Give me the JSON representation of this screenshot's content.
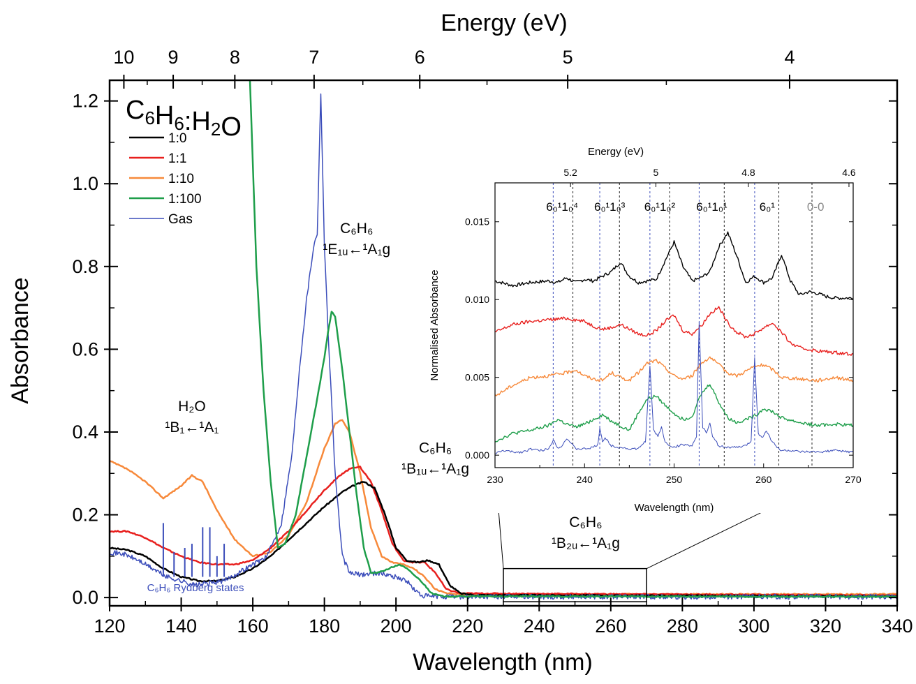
{
  "chart_data": [
    {
      "type": "line",
      "xlabel": "Wavelength (nm)",
      "ylabel": "Absorbance",
      "x2label": "Energy (eV)",
      "xlim": [
        120,
        340
      ],
      "ylim": [
        -0.02,
        1.25
      ],
      "xticks": [
        "120",
        "140",
        "160",
        "180",
        "200",
        "220",
        "240",
        "260",
        "280",
        "300",
        "320",
        "340"
      ],
      "yticks": [
        "0.0",
        "0.2",
        "0.4",
        "0.6",
        "0.8",
        "1.0",
        "1.2"
      ],
      "energy_ticks": [
        {
          "label": "10",
          "ev": 10
        },
        {
          "label": "9",
          "ev": 9
        },
        {
          "label": "8",
          "ev": 8
        },
        {
          "label": "7",
          "ev": 7
        },
        {
          "label": "6",
          "ev": 6
        },
        {
          "label": "5",
          "ev": 5
        },
        {
          "label": "4",
          "ev": 4
        }
      ],
      "legend_title": "C6H6:H2O",
      "legend_position": "top-left",
      "series": [
        {
          "name": "1:0",
          "color": "#000000",
          "x": [
            120,
            125,
            130,
            135,
            140,
            145,
            150,
            155,
            160,
            165,
            170,
            175,
            180,
            185,
            188,
            191,
            194,
            197,
            200,
            203,
            206,
            209,
            212,
            215,
            218,
            222,
            340
          ],
          "y": [
            0.12,
            0.115,
            0.1,
            0.07,
            0.05,
            0.04,
            0.04,
            0.05,
            0.07,
            0.1,
            0.14,
            0.18,
            0.22,
            0.255,
            0.27,
            0.28,
            0.265,
            0.2,
            0.12,
            0.09,
            0.085,
            0.09,
            0.08,
            0.03,
            0.01,
            0.006,
            0.003
          ]
        },
        {
          "name": "1:1",
          "color": "#e8201e",
          "x": [
            120,
            125,
            130,
            135,
            140,
            145,
            150,
            155,
            160,
            165,
            170,
            175,
            180,
            185,
            188,
            190,
            193,
            196,
            199,
            202,
            205,
            208,
            211,
            214,
            218,
            340
          ],
          "y": [
            0.16,
            0.16,
            0.145,
            0.12,
            0.1,
            0.085,
            0.08,
            0.08,
            0.09,
            0.12,
            0.16,
            0.21,
            0.26,
            0.3,
            0.315,
            0.315,
            0.28,
            0.21,
            0.13,
            0.09,
            0.085,
            0.085,
            0.06,
            0.02,
            0.01,
            0.005
          ]
        },
        {
          "name": "1:10",
          "color": "#f7893a",
          "x": [
            120,
            125,
            130,
            135,
            140,
            143,
            146,
            150,
            155,
            160,
            165,
            170,
            175,
            180,
            183,
            185,
            187,
            190,
            193,
            196,
            199,
            202,
            205,
            208,
            211,
            214,
            218,
            340
          ],
          "y": [
            0.33,
            0.31,
            0.28,
            0.24,
            0.27,
            0.295,
            0.28,
            0.21,
            0.14,
            0.1,
            0.11,
            0.15,
            0.23,
            0.36,
            0.42,
            0.43,
            0.4,
            0.3,
            0.17,
            0.1,
            0.085,
            0.08,
            0.07,
            0.05,
            0.02,
            0.01,
            0.008,
            0.008
          ]
        },
        {
          "name": "1:100",
          "color": "#1e9e4a",
          "x": [
            159,
            161,
            163,
            165,
            167,
            169,
            172,
            175,
            178,
            180,
            181,
            182,
            183,
            185,
            187,
            189,
            191,
            193,
            195,
            198,
            201,
            203,
            205,
            207,
            210,
            213,
            220,
            340
          ],
          "y": [
            1.3,
            0.8,
            0.5,
            0.28,
            0.12,
            0.13,
            0.2,
            0.34,
            0.48,
            0.58,
            0.64,
            0.69,
            0.68,
            0.55,
            0.4,
            0.25,
            0.12,
            0.06,
            0.06,
            0.07,
            0.08,
            0.07,
            0.055,
            0.04,
            0.01,
            0.003,
            0.003,
            0.002
          ]
        },
        {
          "name": "Gas",
          "color": "#3b4dba",
          "x": [
            120,
            124,
            128,
            132,
            136,
            140,
            144,
            148,
            152,
            156,
            160,
            164,
            168,
            171,
            173,
            175,
            177,
            178,
            179,
            180,
            181,
            183,
            185,
            187,
            190,
            195,
            200,
            203,
            205,
            207,
            210,
            340
          ],
          "y": [
            0.11,
            0.105,
            0.09,
            0.07,
            0.05,
            0.04,
            0.03,
            0.035,
            0.04,
            0.06,
            0.08,
            0.1,
            0.18,
            0.35,
            0.55,
            0.72,
            0.85,
            0.88,
            1.22,
            0.85,
            0.65,
            0.3,
            0.1,
            0.06,
            0.055,
            0.06,
            0.05,
            0.04,
            0.02,
            0.005,
            0.002,
            0.002
          ]
        }
      ],
      "gas_spikes": [
        {
          "x": 135,
          "y": 0.18
        },
        {
          "x": 138,
          "y": 0.11
        },
        {
          "x": 141,
          "y": 0.12
        },
        {
          "x": 143,
          "y": 0.13
        },
        {
          "x": 146,
          "y": 0.17
        },
        {
          "x": 148,
          "y": 0.17
        },
        {
          "x": 150,
          "y": 0.1
        },
        {
          "x": 152,
          "y": 0.13
        }
      ],
      "annotations": [
        {
          "line1": "H₂O",
          "line2": "¹B₁←¹A₁",
          "x": 143,
          "y": 0.43
        },
        {
          "line1": "C₆H₆",
          "line2": "¹E₁ᵤ←¹A₁g",
          "x": 189,
          "y": 0.86
        },
        {
          "line1": "C₆H₆",
          "line2": "¹B₁ᵤ←¹A₁g",
          "x": 211,
          "y": 0.33
        },
        {
          "line1": "C₆H₆",
          "line2": "¹B₂ᵤ←¹A₁g",
          "x": 253,
          "y": 0.15
        },
        {
          "line1": "C₆H₆ Rydberg states",
          "line2": "",
          "x": 144,
          "y": 0.015,
          "color": "#3b4dba"
        }
      ],
      "zoom_box": {
        "x": [
          230,
          270
        ],
        "y": [
          -0.01,
          0.07
        ]
      }
    },
    {
      "type": "line",
      "xlabel": "Wavelength (nm)",
      "ylabel": "Normalised Absorbance",
      "x2label": "Energy (eV)",
      "xlim": [
        230,
        270
      ],
      "ylim": [
        -0.0008,
        0.0175
      ],
      "xticks": [
        "230",
        "240",
        "250",
        "260",
        "270"
      ],
      "yticks": [
        "0.000",
        "0.005",
        "0.010",
        "0.015"
      ],
      "energy_ticks": [
        {
          "label": "5.2",
          "ev": 5.2
        },
        {
          "label": "5",
          "ev": 5.0
        },
        {
          "label": "4.8",
          "ev": 4.8
        },
        {
          "label": "4.6",
          "ev": 4.6
        }
      ],
      "vibronic_labels": [
        {
          "label": "6₀¹1₀⁴",
          "x": 237.5,
          "color": "#000000"
        },
        {
          "label": "6₀¹1₀³",
          "x": 242.8,
          "color": "#000000"
        },
        {
          "label": "6₀¹1₀²",
          "x": 248.4,
          "color": "#000000"
        },
        {
          "label": "6₀¹1₀¹",
          "x": 254.2,
          "color": "#000000"
        },
        {
          "label": "6₀¹",
          "x": 260.4,
          "color": "#000000"
        },
        {
          "label": "0-0",
          "x": 265.8,
          "color": "#888888"
        }
      ],
      "blue_lines": [
        236.5,
        241.7,
        247.3,
        252.8,
        259.0
      ],
      "black_lines": [
        238.7,
        243.9,
        249.5,
        255.6,
        261.7,
        265.4
      ],
      "series": [
        {
          "name": "1:0",
          "color": "#000000",
          "x": [
            230,
            232,
            234,
            236,
            237,
            238,
            239,
            240,
            241,
            242,
            243,
            244,
            245,
            246,
            247,
            248,
            249,
            250,
            251,
            252,
            253,
            254,
            255,
            256,
            257,
            258,
            259,
            260,
            261,
            262,
            263,
            264,
            265,
            266,
            267,
            268,
            270
          ],
          "y": [
            0.0112,
            0.0109,
            0.0111,
            0.0112,
            0.0111,
            0.0114,
            0.0111,
            0.0113,
            0.0112,
            0.0115,
            0.0118,
            0.0124,
            0.0115,
            0.0111,
            0.0112,
            0.0113,
            0.0125,
            0.0137,
            0.0121,
            0.0112,
            0.0114,
            0.0118,
            0.0134,
            0.0143,
            0.0128,
            0.0111,
            0.0115,
            0.0111,
            0.0114,
            0.0129,
            0.0112,
            0.0103,
            0.0105,
            0.0104,
            0.0102,
            0.0101,
            0.0101
          ]
        },
        {
          "name": "1:1",
          "color": "#e8201e",
          "x": [
            230,
            232,
            234,
            236,
            238,
            240,
            241,
            242,
            243,
            244,
            245,
            246,
            247,
            248,
            249,
            250,
            251,
            252,
            253,
            254,
            255,
            256,
            257,
            258,
            259,
            260,
            261,
            262,
            263,
            264,
            266,
            268,
            270
          ],
          "y": [
            0.0079,
            0.0084,
            0.0086,
            0.0087,
            0.0088,
            0.0086,
            0.0083,
            0.0081,
            0.0082,
            0.0084,
            0.0081,
            0.0078,
            0.0077,
            0.008,
            0.0086,
            0.009,
            0.008,
            0.0078,
            0.0083,
            0.0091,
            0.0095,
            0.0085,
            0.0079,
            0.0076,
            0.0078,
            0.0082,
            0.0085,
            0.0079,
            0.0072,
            0.0069,
            0.0067,
            0.0066,
            0.0065
          ]
        },
        {
          "name": "1:10",
          "color": "#f7893a",
          "x": [
            230,
            232,
            234,
            236,
            238,
            239,
            240,
            241,
            242,
            243,
            244,
            245,
            246,
            247,
            248,
            249,
            250,
            251,
            252,
            253,
            254,
            255,
            256,
            257,
            258,
            259,
            260,
            261,
            262,
            264,
            266,
            268,
            270
          ],
          "y": [
            0.0038,
            0.0045,
            0.005,
            0.0051,
            0.0053,
            0.0055,
            0.0051,
            0.0049,
            0.0048,
            0.0053,
            0.005,
            0.0048,
            0.0053,
            0.0059,
            0.0061,
            0.0056,
            0.0051,
            0.0049,
            0.0051,
            0.0059,
            0.0063,
            0.0058,
            0.0053,
            0.0051,
            0.0054,
            0.0057,
            0.0058,
            0.0055,
            0.005,
            0.0049,
            0.0048,
            0.005,
            0.0048
          ]
        },
        {
          "name": "1:100",
          "color": "#1e9e4a",
          "x": [
            230,
            232,
            234,
            236,
            237,
            238,
            239,
            240,
            241,
            242,
            243,
            244,
            245,
            246,
            247,
            248,
            249,
            250,
            251,
            252,
            253,
            254,
            255,
            256,
            257,
            258,
            259,
            260,
            261,
            262,
            264,
            266,
            268,
            270
          ],
          "y": [
            0.0009,
            0.0014,
            0.0016,
            0.0019,
            0.0023,
            0.002,
            0.0018,
            0.002,
            0.0023,
            0.0026,
            0.0022,
            0.0019,
            0.0016,
            0.0027,
            0.0036,
            0.0038,
            0.0032,
            0.0027,
            0.0023,
            0.0025,
            0.0039,
            0.0046,
            0.0034,
            0.0024,
            0.0021,
            0.0023,
            0.0025,
            0.003,
            0.0028,
            0.0024,
            0.0021,
            0.0019,
            0.002,
            0.0019
          ]
        },
        {
          "name": "Gas",
          "color": "#3b4dba",
          "x": [
            230,
            231,
            232,
            233,
            234,
            235,
            236,
            236.5,
            237,
            237.5,
            238,
            239,
            240,
            241,
            241.5,
            241.7,
            242,
            242.3,
            243,
            244,
            245,
            246,
            246.8,
            247.3,
            247.7,
            248.2,
            248.6,
            249,
            250,
            251,
            252,
            252.5,
            252.8,
            253.2,
            253.6,
            254,
            254.3,
            255,
            256,
            257,
            258,
            258.6,
            259,
            259.4,
            259.8,
            260.3,
            260.8,
            261.5,
            262,
            263,
            264,
            266,
            268,
            270
          ],
          "y": [
            0.0001,
            0.0003,
            0.0002,
            0.0002,
            0.0004,
            0.0003,
            0.0004,
            0.001,
            0.0005,
            0.0006,
            0.0011,
            0.0004,
            0.0004,
            0.0005,
            0.0007,
            0.0018,
            0.0009,
            0.0011,
            0.0006,
            0.0005,
            0.0004,
            0.0004,
            0.0009,
            0.0057,
            0.0016,
            0.0012,
            0.0018,
            0.0008,
            0.0005,
            0.0007,
            0.0006,
            0.0011,
            0.0085,
            0.0018,
            0.0015,
            0.002,
            0.0012,
            0.0006,
            0.0005,
            0.0005,
            0.0006,
            0.0009,
            0.0063,
            0.0014,
            0.0011,
            0.0016,
            0.001,
            0.0005,
            0.0003,
            0.0003,
            0.0002,
            0.0002,
            0.0003,
            0.0002
          ]
        }
      ]
    }
  ]
}
